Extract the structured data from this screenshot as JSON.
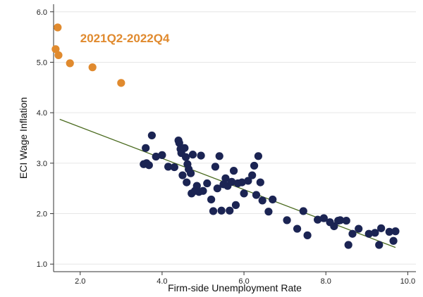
{
  "chart_data": {
    "type": "scatter",
    "xlabel": "Firm-side Unemployment Rate",
    "ylabel": "ECI Wage Inflation",
    "xlim": [
      1.35,
      10.2
    ],
    "ylim": [
      0.85,
      6.15
    ],
    "x_ticks": [
      2.0,
      4.0,
      6.0,
      8.0,
      10.0
    ],
    "x_tick_labels": [
      "2.0",
      "4.0",
      "6.0",
      "8.0",
      "10.0"
    ],
    "y_ticks": [
      1.0,
      2.0,
      3.0,
      4.0,
      5.0,
      6.0
    ],
    "y_tick_labels": [
      "1.0",
      "2.0",
      "3.0",
      "4.0",
      "5.0",
      "6.0"
    ],
    "grid": "horizontal",
    "annotation": {
      "text": "2021Q2-2022Q4",
      "x": 2.0,
      "y": 5.4,
      "color": "#E08A2E"
    },
    "fit_line": {
      "x": [
        1.5,
        9.7
      ],
      "y": [
        3.87,
        1.33
      ],
      "color": "#4A6A1E"
    },
    "series": [
      {
        "color": "#E08A2E",
        "points": [
          [
            1.45,
            5.69
          ],
          [
            1.4,
            5.26
          ],
          [
            1.47,
            5.14
          ],
          [
            1.75,
            4.98
          ],
          [
            2.3,
            4.9
          ],
          [
            3.0,
            4.59
          ]
        ]
      },
      {
        "color": "#1B2453",
        "points": [
          [
            3.55,
            2.98
          ],
          [
            3.6,
            3.3
          ],
          [
            3.62,
            3.0
          ],
          [
            3.68,
            2.96
          ],
          [
            3.75,
            3.55
          ],
          [
            3.85,
            3.13
          ],
          [
            4.0,
            3.16
          ],
          [
            4.15,
            2.93
          ],
          [
            4.3,
            2.92
          ],
          [
            4.4,
            3.45
          ],
          [
            4.42,
            3.4
          ],
          [
            4.45,
            3.28
          ],
          [
            4.47,
            3.2
          ],
          [
            4.5,
            2.76
          ],
          [
            4.55,
            3.3
          ],
          [
            4.58,
            3.12
          ],
          [
            4.6,
            2.62
          ],
          [
            4.62,
            2.98
          ],
          [
            4.65,
            2.88
          ],
          [
            4.7,
            2.8
          ],
          [
            4.72,
            2.4
          ],
          [
            4.75,
            3.17
          ],
          [
            4.8,
            2.45
          ],
          [
            4.85,
            2.55
          ],
          [
            4.9,
            2.43
          ],
          [
            4.95,
            3.15
          ],
          [
            5.0,
            2.45
          ],
          [
            5.1,
            2.6
          ],
          [
            5.2,
            2.28
          ],
          [
            5.25,
            2.05
          ],
          [
            5.3,
            2.93
          ],
          [
            5.35,
            2.5
          ],
          [
            5.4,
            3.14
          ],
          [
            5.45,
            2.06
          ],
          [
            5.5,
            2.58
          ],
          [
            5.55,
            2.7
          ],
          [
            5.6,
            2.55
          ],
          [
            5.65,
            2.06
          ],
          [
            5.7,
            2.63
          ],
          [
            5.75,
            2.85
          ],
          [
            5.8,
            2.17
          ],
          [
            5.85,
            2.6
          ],
          [
            5.95,
            2.62
          ],
          [
            6.0,
            2.4
          ],
          [
            6.1,
            2.65
          ],
          [
            6.2,
            2.76
          ],
          [
            6.25,
            2.95
          ],
          [
            6.3,
            2.37
          ],
          [
            6.35,
            3.14
          ],
          [
            6.4,
            2.62
          ],
          [
            6.45,
            2.26
          ],
          [
            6.6,
            2.04
          ],
          [
            6.7,
            2.28
          ],
          [
            7.05,
            1.87
          ],
          [
            7.3,
            1.7
          ],
          [
            7.45,
            2.05
          ],
          [
            7.55,
            1.57
          ],
          [
            7.8,
            1.88
          ],
          [
            7.95,
            1.91
          ],
          [
            8.1,
            1.83
          ],
          [
            8.2,
            1.75
          ],
          [
            8.3,
            1.86
          ],
          [
            8.35,
            1.87
          ],
          [
            8.5,
            1.86
          ],
          [
            8.55,
            1.38
          ],
          [
            8.65,
            1.6
          ],
          [
            8.8,
            1.7
          ],
          [
            9.05,
            1.6
          ],
          [
            9.2,
            1.62
          ],
          [
            9.3,
            1.38
          ],
          [
            9.35,
            1.71
          ],
          [
            9.55,
            1.64
          ],
          [
            9.65,
            1.46
          ],
          [
            9.7,
            1.65
          ]
        ]
      }
    ]
  }
}
